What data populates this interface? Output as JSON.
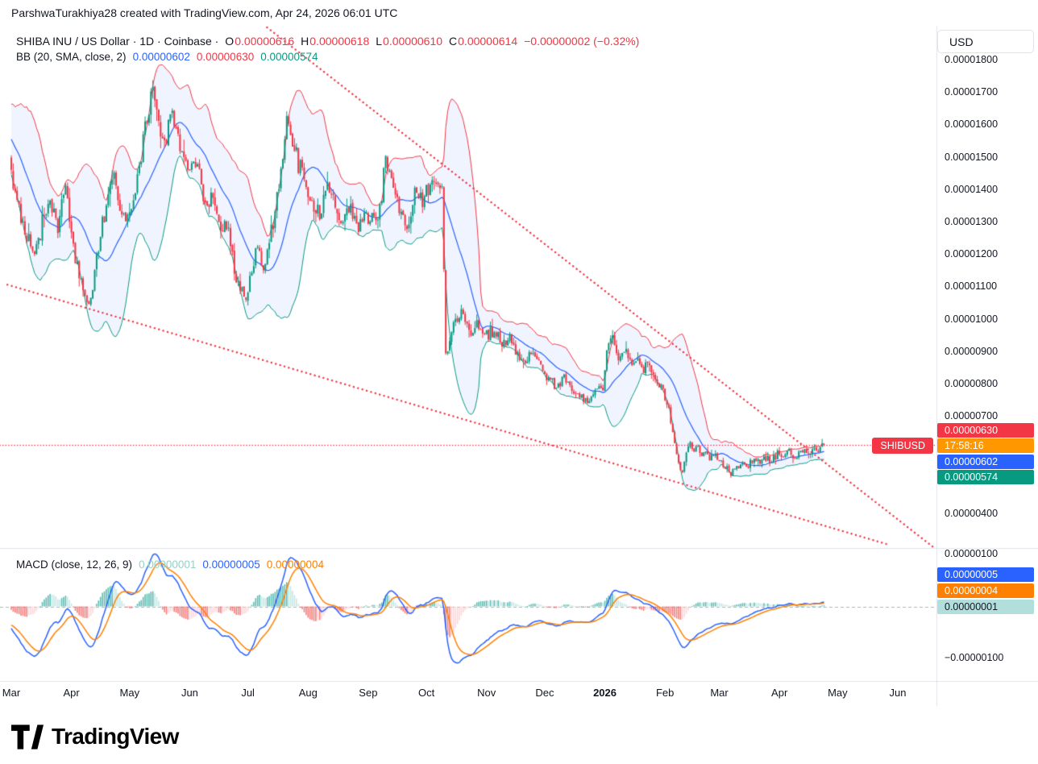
{
  "attribution": {
    "text": "ParshwaTurakhiya28 created with TradingView.com, Apr 24, 2026 06:01 UTC"
  },
  "header": {
    "symbol_line": {
      "title": "SHIBA INU / US Dollar · 1D · Coinbase ·",
      "open_label": "O",
      "open": "0.00000616",
      "high_label": "H",
      "high": "0.00000618",
      "low_label": "L",
      "low": "0.00000610",
      "close_label": "C",
      "close": "0.00000614",
      "change": "−0.00000002 (−0.32%)"
    },
    "bb_line": {
      "title": "BB (20, SMA, close, 2)",
      "basis": "0.00000602",
      "upper": "0.00000630",
      "lower": "0.00000574"
    }
  },
  "macd_legend": {
    "title": "MACD (close, 12, 26, 9)",
    "histogram": "0.00000001",
    "macd": "0.00000005",
    "signal": "0.00000004"
  },
  "price_scale": {
    "currency": "USD",
    "ticks": [
      "0.00001800",
      "0.00001700",
      "0.00001600",
      "0.00001500",
      "0.00001400",
      "0.00001300",
      "0.00001200",
      "0.00001100",
      "0.00001000",
      "0.00000900",
      "0.00000800",
      "0.00000700",
      "0.00000600",
      "0.00000500",
      "0.00000400"
    ],
    "badges": [
      {
        "name": "bb-upper",
        "label": "0.00000630",
        "bg": "#f23645",
        "fg": "#ffffff"
      },
      {
        "name": "countdown",
        "label": "17:58:16",
        "bg": "#ff9800",
        "fg": "#ffffff"
      },
      {
        "name": "bb-basis",
        "label": "0.00000602",
        "bg": "#2962ff",
        "fg": "#ffffff"
      },
      {
        "name": "bb-lower",
        "label": "0.00000574",
        "bg": "#089981",
        "fg": "#ffffff"
      }
    ],
    "symbol_badge": {
      "label": "SHIBUSD",
      "bg": "#f23645"
    }
  },
  "macd_scale": {
    "ticks": [
      {
        "label": "0.00000100",
        "v": 100
      },
      {
        "label": "−0.00000100",
        "v": -100
      }
    ],
    "badges": [
      {
        "label": "0.00000005",
        "bg": "#2962ff",
        "fg": "#ffffff"
      },
      {
        "label": "0.00000004",
        "bg": "#ff8000",
        "fg": "#ffffff"
      },
      {
        "label": "0.00000001",
        "bg": "#b2dfdb",
        "fg": "#131722"
      }
    ]
  },
  "time_axis": {
    "labels": [
      "Mar",
      "Apr",
      "May",
      "Jun",
      "Jul",
      "Aug",
      "Sep",
      "Oct",
      "Nov",
      "Dec",
      "2026",
      "Feb",
      "Mar",
      "Apr",
      "May",
      "Jun"
    ],
    "month_start_days": [
      0,
      31,
      61,
      92,
      122,
      153,
      184,
      214,
      245,
      275,
      306,
      337,
      365,
      396,
      426,
      457
    ],
    "major_label": "2026"
  },
  "footer": {
    "brand": "TradingView"
  },
  "colors": {
    "up": "#089981",
    "down": "#f23645",
    "bb_upper": "#f23645",
    "bb_basis": "#2962ff",
    "bb_lower": "#089981",
    "bb_fill": "rgba(41,98,255,0.07)",
    "macd_line": "#2962ff",
    "signal_line": "#ff8000",
    "hist_pos": "#26a69a",
    "hist_pos_weak": "#b2dfdb",
    "hist_neg": "#ef5350",
    "hist_neg_weak": "#fccbcd",
    "trendline": "#f23645",
    "text": "#131722",
    "border": "#e0e3eb"
  },
  "chart_data": {
    "type": "candlestick",
    "symbol": "SHIBUSD",
    "exchange": "Coinbase",
    "interval": "1D",
    "title": "SHIBA INU / US Dollar",
    "price_unit": "1e-8 USD",
    "x_range_days": 420,
    "price_axis_range": [
      296,
      1912
    ],
    "macd_axis_range": [
      -145,
      105
    ],
    "current_candle": {
      "open": 616,
      "high": 618,
      "low": 610,
      "close": 614,
      "change": -2,
      "change_pct": -0.32
    },
    "price_keyframes": [
      [
        0,
        1450
      ],
      [
        4,
        1330
      ],
      [
        8,
        1260
      ],
      [
        12,
        1180
      ],
      [
        16,
        1300
      ],
      [
        20,
        1380
      ],
      [
        24,
        1270
      ],
      [
        28,
        1430
      ],
      [
        31,
        1250
      ],
      [
        34,
        1160
      ],
      [
        38,
        1060
      ],
      [
        40,
        1030
      ],
      [
        43,
        1150
      ],
      [
        46,
        1260
      ],
      [
        50,
        1390
      ],
      [
        53,
        1440
      ],
      [
        56,
        1350
      ],
      [
        60,
        1310
      ],
      [
        63,
        1380
      ],
      [
        66,
        1480
      ],
      [
        70,
        1620
      ],
      [
        73,
        1740
      ],
      [
        76,
        1600
      ],
      [
        79,
        1530
      ],
      [
        82,
        1650
      ],
      [
        85,
        1580
      ],
      [
        88,
        1500
      ],
      [
        92,
        1450
      ],
      [
        96,
        1490
      ],
      [
        100,
        1350
      ],
      [
        104,
        1400
      ],
      [
        108,
        1300
      ],
      [
        112,
        1270
      ],
      [
        115,
        1150
      ],
      [
        118,
        1090
      ],
      [
        121,
        1060
      ],
      [
        124,
        1160
      ],
      [
        127,
        1230
      ],
      [
        130,
        1140
      ],
      [
        133,
        1240
      ],
      [
        136,
        1330
      ],
      [
        139,
        1460
      ],
      [
        142,
        1630
      ],
      [
        145,
        1560
      ],
      [
        148,
        1480
      ],
      [
        151,
        1430
      ],
      [
        155,
        1370
      ],
      [
        159,
        1330
      ],
      [
        163,
        1420
      ],
      [
        167,
        1360
      ],
      [
        171,
        1300
      ],
      [
        175,
        1340
      ],
      [
        179,
        1280
      ],
      [
        183,
        1320
      ],
      [
        187,
        1300
      ],
      [
        190,
        1340
      ],
      [
        193,
        1490
      ],
      [
        196,
        1420
      ],
      [
        200,
        1330
      ],
      [
        204,
        1300
      ],
      [
        208,
        1380
      ],
      [
        212,
        1360
      ],
      [
        216,
        1420
      ],
      [
        220,
        1440
      ],
      [
        222,
        1390
      ],
      [
        223,
        1150
      ],
      [
        224,
        880
      ],
      [
        226,
        940
      ],
      [
        229,
        1000
      ],
      [
        233,
        1030
      ],
      [
        237,
        960
      ],
      [
        241,
        990
      ],
      [
        245,
        950
      ],
      [
        249,
        970
      ],
      [
        253,
        920
      ],
      [
        257,
        950
      ],
      [
        261,
        890
      ],
      [
        265,
        870
      ],
      [
        269,
        900
      ],
      [
        273,
        850
      ],
      [
        277,
        820
      ],
      [
        281,
        790
      ],
      [
        285,
        820
      ],
      [
        289,
        780
      ],
      [
        293,
        760
      ],
      [
        297,
        740
      ],
      [
        301,
        770
      ],
      [
        305,
        790
      ],
      [
        307,
        900
      ],
      [
        309,
        960
      ],
      [
        311,
        910
      ],
      [
        314,
        880
      ],
      [
        317,
        900
      ],
      [
        320,
        860
      ],
      [
        323,
        880
      ],
      [
        326,
        850
      ],
      [
        329,
        870
      ],
      [
        332,
        820
      ],
      [
        335,
        790
      ],
      [
        338,
        740
      ],
      [
        340,
        690
      ],
      [
        342,
        610
      ],
      [
        344,
        550
      ],
      [
        346,
        525
      ],
      [
        348,
        580
      ],
      [
        350,
        630
      ],
      [
        352,
        590
      ],
      [
        354,
        615
      ],
      [
        356,
        580
      ],
      [
        358,
        600
      ],
      [
        360,
        570
      ],
      [
        362,
        590
      ],
      [
        365,
        560
      ],
      [
        368,
        545
      ],
      [
        371,
        525
      ],
      [
        374,
        545
      ],
      [
        377,
        565
      ],
      [
        380,
        550
      ],
      [
        383,
        570
      ],
      [
        386,
        555
      ],
      [
        389,
        575
      ],
      [
        392,
        565
      ],
      [
        395,
        585
      ],
      [
        398,
        575
      ],
      [
        401,
        590
      ],
      [
        404,
        580
      ],
      [
        407,
        595
      ],
      [
        410,
        600
      ],
      [
        412,
        592
      ],
      [
        414,
        605
      ],
      [
        416,
        598
      ],
      [
        418,
        610
      ],
      [
        419,
        614
      ]
    ],
    "indicators": {
      "bollinger": {
        "period": 20,
        "stdev_mult": 2,
        "basis": 602,
        "upper": 630,
        "lower": 574
      },
      "macd": {
        "fast": 12,
        "slow": 26,
        "signal_period": 9,
        "macd": 5,
        "signal": 4,
        "histogram": 1
      }
    },
    "trendlines": [
      {
        "name": "upper-wedge-line",
        "from": [
          119,
          1962
        ],
        "to": [
          476,
          295
        ]
      },
      {
        "name": "lower-wedge-line",
        "from": [
          -2,
          1108
        ],
        "to": [
          451,
          308
        ]
      }
    ],
    "price_line": {
      "value": 614
    }
  }
}
